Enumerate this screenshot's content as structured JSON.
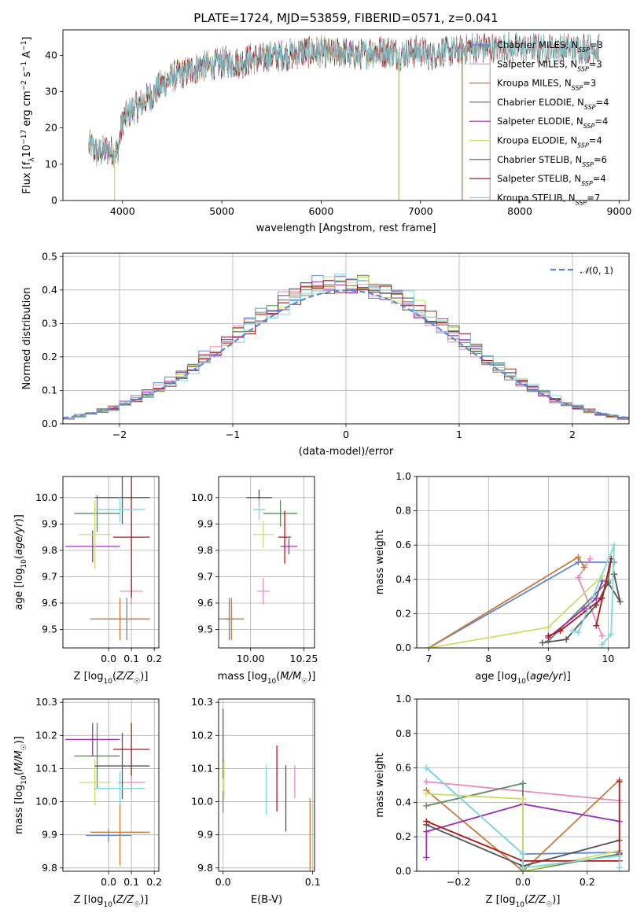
{
  "chart_data": [
    {
      "id": "spectrum",
      "type": "line",
      "title": "PLATE=1724, MJD=53859, FIBERID=0571, z=0.041",
      "xlabel": "wavelength [Angstrom, rest frame]",
      "ylabel": "Flux [f_λ10⁻¹⁷ erg cm⁻² s⁻¹ A⁻¹]",
      "xlim": [
        3400,
        9100
      ],
      "ylim": [
        0,
        47
      ],
      "xticks": [
        "4000",
        "5000",
        "6000",
        "7000",
        "8000",
        "9000"
      ],
      "yticks": [
        "0",
        "10",
        "20",
        "30",
        "40"
      ],
      "grid": false,
      "legend_position": "right",
      "continuum_x": [
        3680,
        3750,
        3850,
        3950,
        4000,
        4100,
        4200,
        4300,
        4400,
        4500,
        4600,
        4700,
        4800,
        4900,
        5000,
        5100,
        5200,
        5300,
        5400,
        5500,
        5600,
        5700,
        5800,
        5900,
        6000,
        6100,
        6200,
        6300,
        6400,
        6500,
        6600,
        6700,
        6800,
        6900,
        7000,
        7100,
        7200,
        7300,
        7400,
        7500,
        7600,
        7700,
        7800
      ],
      "continuum_y": [
        15,
        13,
        14,
        13,
        22,
        25,
        27,
        29,
        32,
        34,
        35,
        36,
        37,
        37,
        38,
        38,
        38,
        39,
        39,
        40,
        40,
        40,
        41,
        41,
        41,
        40,
        41,
        40,
        40,
        41,
        41,
        41,
        40,
        41,
        41,
        40,
        41,
        41,
        41,
        42,
        42,
        42,
        42
      ],
      "series": [
        {
          "name": "Chabrier MILES, N_SSP=3",
          "label_main": "Chabrier MILES, N",
          "label_sub": "SSP",
          "label_tail": "=3",
          "color": "#5d86d4",
          "end": 7700
        },
        {
          "name": "Salpeter MILES, N_SSP=3",
          "label_main": "Salpeter MILES, N",
          "label_sub": "SSP",
          "label_tail": "=3",
          "color": "#e88bc1",
          "end": 7700
        },
        {
          "name": "Kroupa MILES, N_SSP=3",
          "label_main": "Kroupa MILES, N",
          "label_sub": "SSP",
          "label_tail": "=3",
          "color": "#c77a3a",
          "end": 7700
        },
        {
          "name": "Chabrier ELODIE, N_SSP=4",
          "label_main": "Chabrier ELODIE, N",
          "label_sub": "SSP",
          "label_tail": "=4",
          "color": "#5f8a5f",
          "end": 6780
        },
        {
          "name": "Salpeter ELODIE, N_SSP=4",
          "label_main": "Salpeter ELODIE, N",
          "label_sub": "SSP",
          "label_tail": "=4",
          "color": "#9b30b8",
          "end": 6780
        },
        {
          "name": "Kroupa ELODIE, N_SSP=4",
          "label_main": "Kroupa ELODIE, N",
          "label_sub": "SSP",
          "label_tail": "=4",
          "color": "#c8e064",
          "end": 6780
        },
        {
          "name": "Chabrier STELIB, N_SSP=6",
          "label_main": "Chabrier STELIB, N",
          "label_sub": "SSP",
          "label_tail": "=6",
          "color": "#555555",
          "end": 8800
        },
        {
          "name": "Salpeter STELIB, N_SSP=4",
          "label_main": "Salpeter STELIB, N",
          "label_sub": "SSP",
          "label_tail": "=4",
          "color": "#b01818",
          "end": 8800
        },
        {
          "name": "Kroupa STELIB, N_SSP=7",
          "label_main": "Kroupa STELIB, N",
          "label_sub": "SSP",
          "label_tail": "=7",
          "color": "#7fd8de",
          "end": 8800
        }
      ]
    },
    {
      "id": "residuals",
      "type": "bar",
      "xlabel": "(data-model)/error",
      "ylabel": "Normed distribution",
      "xlim": [
        -2.5,
        2.5
      ],
      "ylim": [
        0,
        0.51
      ],
      "xticks": [
        "−2",
        "−1",
        "0",
        "1",
        "2"
      ],
      "yticks": [
        "0.0",
        "0.1",
        "0.2",
        "0.3",
        "0.4",
        "0.5"
      ],
      "grid": true,
      "legend_label": "N(0,1)",
      "legend_position": "top-right",
      "reference_curve": "normal pdf, mean 0, sigma 1",
      "bin_width": 0.1
    },
    {
      "id": "age_vs_Z",
      "type": "scatter",
      "xlabel": "Z [log10(Z/Z☉)]",
      "ylabel": "age [log10(age/yr)]",
      "xlim": [
        -0.2,
        0.22
      ],
      "ylim": [
        9.43,
        10.08
      ],
      "xticks": [
        "0.0",
        "0.1",
        "0.2"
      ],
      "yticks": [
        "9.5",
        "9.6",
        "9.7",
        "9.8",
        "9.9",
        "10.0"
      ],
      "grid": true,
      "points": [
        {
          "series": 0,
          "x": 0.08,
          "y": 9.54,
          "xerr": 0.1,
          "yerr": 0.08
        },
        {
          "series": 1,
          "x": 0.1,
          "y": 9.645,
          "xerr": 0.05,
          "yerr": 0.05
        },
        {
          "series": 2,
          "x": 0.05,
          "y": 9.54,
          "xerr": 0.13,
          "yerr": 0.08
        },
        {
          "series": 3,
          "x": -0.05,
          "y": 9.94,
          "xerr": 0.1,
          "yerr": 0.07
        },
        {
          "series": 4,
          "x": -0.07,
          "y": 9.815,
          "xerr": 0.12,
          "yerr": 0.06
        },
        {
          "series": 5,
          "x": -0.06,
          "y": 9.86,
          "xerr": 0.07,
          "yerr": 0.13
        },
        {
          "series": 6,
          "x": 0.06,
          "y": 10.0,
          "xerr": 0.12,
          "yerr": 0.1
        },
        {
          "series": 7,
          "x": 0.1,
          "y": 9.85,
          "xerr": 0.08,
          "yerr": 0.23
        },
        {
          "series": 8,
          "x": 0.05,
          "y": 9.955,
          "xerr": 0.11,
          "yerr": 0.05
        }
      ]
    },
    {
      "id": "age_vs_mass",
      "type": "scatter",
      "xlabel": "mass [log10(M/M☉)]",
      "ylabel": "",
      "xlim": [
        9.85,
        10.3
      ],
      "ylim": [
        9.43,
        10.08
      ],
      "xticks": [
        "10.00",
        "10.25"
      ],
      "yticks": [
        "9.5",
        "9.6",
        "9.7",
        "9.8",
        "9.9",
        "10.0"
      ],
      "grid": true,
      "points": [
        {
          "series": 0,
          "x": 9.9,
          "y": 9.54,
          "xerr": 0.02,
          "yerr": 0.08
        },
        {
          "series": 1,
          "x": 10.06,
          "y": 9.645,
          "xerr": 0.03,
          "yerr": 0.05
        },
        {
          "series": 2,
          "x": 9.91,
          "y": 9.54,
          "xerr": 0.06,
          "yerr": 0.08
        },
        {
          "series": 3,
          "x": 10.14,
          "y": 9.94,
          "xerr": 0.08,
          "yerr": 0.05
        },
        {
          "series": 4,
          "x": 10.18,
          "y": 9.815,
          "xerr": 0.04,
          "yerr": 0.03
        },
        {
          "series": 5,
          "x": 10.06,
          "y": 9.86,
          "xerr": 0.05,
          "yerr": 0.05
        },
        {
          "series": 6,
          "x": 10.04,
          "y": 10.0,
          "xerr": 0.06,
          "yerr": 0.03
        },
        {
          "series": 7,
          "x": 10.16,
          "y": 9.85,
          "xerr": 0.03,
          "yerr": 0.1
        },
        {
          "series": 8,
          "x": 10.04,
          "y": 9.955,
          "xerr": 0.03,
          "yerr": 0.04
        }
      ]
    },
    {
      "id": "massweight_vs_age",
      "type": "line",
      "xlabel": "age [log10(age/yr)]",
      "ylabel": "mass weight",
      "xlim": [
        6.8,
        10.35
      ],
      "ylim": [
        0,
        1.0
      ],
      "xticks": [
        "7",
        "8",
        "9",
        "10"
      ],
      "yticks": [
        "0.0",
        "0.2",
        "0.4",
        "0.6",
        "0.8",
        "1.0"
      ],
      "grid": true,
      "series": [
        {
          "series": 0,
          "x": [
            7.0,
            9.5,
            10.1
          ],
          "y": [
            0.0,
            0.5,
            0.5
          ]
        },
        {
          "series": 1,
          "x": [
            9.7,
            9.5,
            9.9
          ],
          "y": [
            0.52,
            0.41,
            0.07
          ]
        },
        {
          "series": 2,
          "x": [
            7.0,
            9.5,
            9.6
          ],
          "y": [
            0.0,
            0.53,
            0.47
          ]
        },
        {
          "series": 3,
          "x": [
            9.0,
            10.0,
            10.05
          ],
          "y": [
            0.04,
            0.39,
            0.52
          ]
        },
        {
          "series": 4,
          "x": [
            9.0,
            9.6,
            9.8,
            9.9
          ],
          "y": [
            0.06,
            0.23,
            0.29,
            0.39
          ]
        },
        {
          "series": 5,
          "x": [
            7.0,
            9.0,
            9.9
          ],
          "y": [
            0.0,
            0.12,
            0.42
          ]
        },
        {
          "series": 6,
          "x": [
            8.9,
            9.3,
            9.8,
            10.0,
            10.2,
            10.1
          ],
          "y": [
            0.03,
            0.05,
            0.25,
            0.38,
            0.27,
            0.43
          ]
        },
        {
          "series": 7,
          "x": [
            9.0,
            9.2,
            9.9,
            10.05,
            9.8
          ],
          "y": [
            0.07,
            0.1,
            0.29,
            0.52,
            0.13
          ]
        },
        {
          "series": 8,
          "x": [
            9.4,
            9.5,
            10.1,
            10.05,
            9.9
          ],
          "y": [
            0.1,
            0.09,
            0.6,
            0.08,
            0.02
          ]
        }
      ]
    },
    {
      "id": "mass_vs_Z",
      "type": "scatter",
      "xlabel": "Z [log10(Z/Z☉)]",
      "ylabel": "mass [log10(M/M☉)]",
      "xlim": [
        -0.2,
        0.22
      ],
      "ylim": [
        9.79,
        10.31
      ],
      "xticks": [
        "0.0",
        "0.1",
        "0.2"
      ],
      "yticks": [
        "9.8",
        "9.9",
        "10.0",
        "10.1",
        "10.2",
        "10.3"
      ],
      "grid": true,
      "points": [
        {
          "series": 0,
          "x": 0.0,
          "y": 9.898,
          "xerr": 0.1,
          "yerr": 0.02
        },
        {
          "series": 1,
          "x": 0.1,
          "y": 10.058,
          "xerr": 0.06,
          "yerr": 0.03
        },
        {
          "series": 2,
          "x": 0.05,
          "y": 9.908,
          "xerr": 0.13,
          "yerr": 0.1
        },
        {
          "series": 3,
          "x": -0.05,
          "y": 10.138,
          "xerr": 0.1,
          "yerr": 0.1
        },
        {
          "series": 4,
          "x": -0.07,
          "y": 10.188,
          "xerr": 0.12,
          "yerr": 0.05
        },
        {
          "series": 5,
          "x": -0.06,
          "y": 10.058,
          "xerr": 0.07,
          "yerr": 0.07
        },
        {
          "series": 6,
          "x": 0.06,
          "y": 10.108,
          "xerr": 0.12,
          "yerr": 0.1
        },
        {
          "series": 7,
          "x": 0.1,
          "y": 10.158,
          "xerr": 0.08,
          "yerr": 0.08
        },
        {
          "series": 8,
          "x": 0.05,
          "y": 10.04,
          "xerr": 0.11,
          "yerr": 0.05
        }
      ]
    },
    {
      "id": "mass_vs_ebv",
      "type": "scatter",
      "xlabel": "E(B-V)",
      "ylabel": "",
      "xlim": [
        -0.005,
        0.102
      ],
      "ylim": [
        9.79,
        10.31
      ],
      "xticks": [
        "0.0",
        "0.1"
      ],
      "yticks": [
        "9.8",
        "9.9",
        "10.0",
        "10.1",
        "10.2",
        "10.3"
      ],
      "grid": true,
      "points": [
        {
          "series": 0,
          "x": 0.0,
          "y": 10.0,
          "xerr": 0,
          "yerr": 0
        },
        {
          "series": 1,
          "x": 0.08,
          "y": 10.06,
          "xerr": 0,
          "yerr": 0.05
        },
        {
          "series": 2,
          "x": 0.097,
          "y": 9.9,
          "xerr": 0,
          "yerr": 0.11
        },
        {
          "series": 3,
          "x": 0.0,
          "y": 10.1,
          "xerr": 0,
          "yerr": 0.03
        },
        {
          "series": 4,
          "x": 0.0,
          "y": 10.2,
          "xerr": 0,
          "yerr": 0.08
        },
        {
          "series": 5,
          "x": 0.001,
          "y": 10.07,
          "xerr": 0,
          "yerr": 0.06
        },
        {
          "series": 6,
          "x": 0.07,
          "y": 10.01,
          "xerr": 0,
          "yerr": 0.1
        },
        {
          "series": 7,
          "x": 0.06,
          "y": 10.07,
          "xerr": 0,
          "yerr": 0.1
        },
        {
          "series": 8,
          "x": 0.048,
          "y": 10.035,
          "xerr": 0,
          "yerr": 0.075
        }
      ]
    },
    {
      "id": "massweight_vs_Z",
      "type": "line",
      "xlabel": "Z [log10(Z/Z☉)]",
      "ylabel": "mass weight",
      "xlim": [
        -0.33,
        0.33
      ],
      "ylim": [
        0,
        1.0
      ],
      "xticks": [
        "−0.2",
        "0.0",
        "0.2"
      ],
      "yticks": [
        "0.0",
        "0.2",
        "0.4",
        "0.6",
        "0.8",
        "1.0"
      ],
      "grid": true,
      "series": [
        {
          "series": 0,
          "x": [
            -0.3,
            0.0,
            0.3
          ],
          "y": [
            0.6,
            0.1,
            0.11
          ]
        },
        {
          "series": 1,
          "x": [
            -0.3,
            0.3
          ],
          "y": [
            0.52,
            0.41
          ]
        },
        {
          "series": 2,
          "x": [
            -0.3,
            0.0,
            0.3
          ],
          "y": [
            0.47,
            0.0,
            0.53
          ]
        },
        {
          "series": 3,
          "x": [
            -0.3,
            0.0,
            0.0,
            0.3
          ],
          "y": [
            0.38,
            0.51,
            0.0,
            0.1
          ]
        },
        {
          "series": 4,
          "x": [
            -0.3,
            -0.3,
            0.0,
            0.3
          ],
          "y": [
            0.08,
            0.23,
            0.39,
            0.29
          ]
        },
        {
          "series": 5,
          "x": [
            -0.3,
            0.0,
            0.0,
            0.3
          ],
          "y": [
            0.45,
            0.42,
            0.0,
            0.12
          ]
        },
        {
          "series": 6,
          "x": [
            -0.3,
            0.0,
            0.3
          ],
          "y": [
            0.27,
            0.03,
            0.18
          ]
        },
        {
          "series": 7,
          "x": [
            -0.3,
            0.0,
            0.3,
            0.3,
            0.3
          ],
          "y": [
            0.29,
            0.06,
            0.06,
            0.52,
            0.1
          ]
        },
        {
          "series": 8,
          "x": [
            -0.3,
            0.0,
            0.0,
            0.3,
            0.3
          ],
          "y": [
            0.6,
            0.1,
            0.02,
            0.09,
            0.02
          ]
        }
      ]
    }
  ]
}
